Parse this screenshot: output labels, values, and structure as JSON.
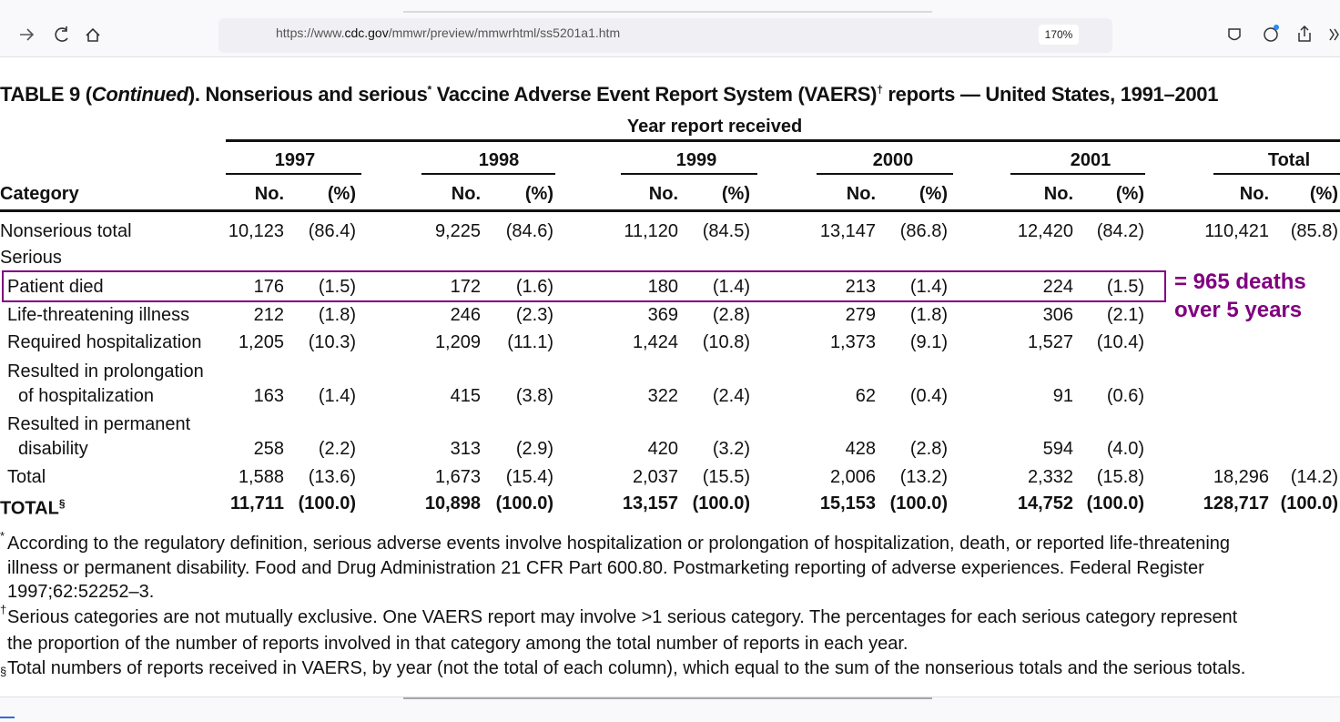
{
  "browser": {
    "url_parts": [
      "https://www.",
      "cdc.gov",
      "/mmwr/preview/mmwrhtml/ss5201a1.htm"
    ],
    "zoom": "170%"
  },
  "table": {
    "title_parts": [
      "TABLE 9 (",
      "Continued",
      "). Nonserious and serious",
      "*",
      " Vaccine Adverse Event Report System (VAERS)",
      "†",
      " reports — United States, 1991–2001"
    ],
    "spanner": "Year report received",
    "groups": [
      "1997",
      "1998",
      "1999",
      "2000",
      "2001",
      "Total"
    ],
    "category_header": "Category",
    "no_header": "No.",
    "pct_header": "(%)",
    "rows": [
      {
        "label": [
          "Nonserious total"
        ],
        "cells": [
          "10,123",
          "(86.4)",
          "9,225",
          "(84.6)",
          "11,120",
          "(84.5)",
          "13,147",
          "(86.8)",
          "12,420",
          "(84.2)",
          "110,421",
          "(85.8)"
        ]
      },
      {
        "label": [
          "Serious"
        ],
        "cells": []
      },
      {
        "label": [
          "Patient died"
        ],
        "cells": [
          "176",
          "(1.5)",
          "172",
          "(1.6)",
          "180",
          "(1.4)",
          "213",
          "(1.4)",
          "224",
          "(1.5)"
        ]
      },
      {
        "label": [
          "Life-threatening illness"
        ],
        "cells": [
          "212",
          "(1.8)",
          "246",
          "(2.3)",
          "369",
          "(2.8)",
          "279",
          "(1.8)",
          "306",
          "(2.1)"
        ]
      },
      {
        "label": [
          "Required hospitalization"
        ],
        "cells": [
          "1,205",
          "(10.3)",
          "1,209",
          "(11.1)",
          "1,424",
          "(10.8)",
          "1,373",
          "(9.1)",
          "1,527",
          "(10.4)"
        ]
      },
      {
        "label": [
          "Resulted in prolongation",
          "of hospitalization"
        ],
        "cells": [
          "163",
          "(1.4)",
          "415",
          "(3.8)",
          "322",
          "(2.4)",
          "62",
          "(0.4)",
          "91",
          "(0.6)"
        ]
      },
      {
        "label": [
          "Resulted in permanent",
          "disability"
        ],
        "cells": [
          "258",
          "(2.2)",
          "313",
          "(2.9)",
          "420",
          "(3.2)",
          "428",
          "(2.8)",
          "594",
          "(4.0)"
        ]
      },
      {
        "label": [
          "Total"
        ],
        "cells": [
          "1,588",
          "(13.6)",
          "1,673",
          "(15.4)",
          "2,037",
          "(15.5)",
          "2,006",
          "(13.2)",
          "2,332",
          "(15.8)",
          "18,296",
          "(14.2)"
        ]
      },
      {
        "label": [
          "TOTAL"
        ],
        "sup": "§",
        "cells": [
          "11,711",
          "(100.0)",
          "10,898",
          "(100.0)",
          "13,157",
          "(100.0)",
          "15,153",
          "(100.0)",
          "14,752",
          "(100.0)",
          "128,717",
          "(100.0)"
        ]
      }
    ]
  },
  "annotation": [
    "= 965 deaths",
    "over 5 years"
  ],
  "footnotes": [
    {
      "marker": "*",
      "lines": [
        "According to the regulatory definition, serious adverse events involve hospitalization or prolongation of hospitalization, death, or reported life-threatening",
        "illness or permanent disability. Food and Drug Administration 21 CFR Part 600.80. Postmarketing reporting of adverse experiences. Federal Register",
        "1997;62:52252–3."
      ]
    },
    {
      "marker": "†",
      "lines": [
        "Serious categories are not mutually exclusive. One VAERS report may involve >1 serious category. The percentages for each serious category represent",
        "the proportion of the number of reports involved in that category among the total number of reports in each year."
      ]
    },
    {
      "marker": "§",
      "lines": [
        "Total numbers of reports received in VAERS, by year (not the total of each column), which equal to the sum of the nonserious totals and the serious totals."
      ]
    }
  ]
}
